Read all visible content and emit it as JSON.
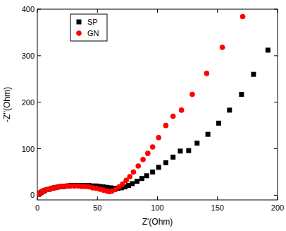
{
  "chart_data": {
    "type": "scatter",
    "x_label": "Z'(Ohm)",
    "y_label": "-Z''(Ohm)",
    "xlim": [
      0,
      200
    ],
    "ylim": [
      -10,
      400
    ],
    "xticks": [
      0,
      50,
      100,
      150,
      200
    ],
    "yticks": [
      0,
      100,
      200,
      300,
      400
    ],
    "grid": false,
    "legend": "upper left",
    "series": [
      {
        "name": "SP",
        "color": "#000000",
        "marker": "square",
        "x": [
          1,
          2,
          3,
          4,
          5,
          6,
          8,
          10,
          12,
          14,
          16,
          18,
          20,
          22,
          25,
          28,
          31,
          34,
          37,
          40,
          43,
          46,
          49,
          52,
          55,
          58,
          61,
          64,
          67,
          70,
          73,
          76,
          79,
          83,
          87,
          91,
          96,
          101,
          107,
          113,
          119,
          126,
          133,
          142,
          151,
          160,
          170,
          180,
          192
        ],
        "values": [
          2,
          4,
          6,
          8,
          9,
          10,
          12,
          13,
          15,
          16,
          17,
          18,
          19,
          19,
          20,
          21,
          21,
          21,
          21,
          21,
          21,
          20,
          20,
          19,
          18,
          17,
          16,
          15,
          15,
          16,
          18,
          21,
          25,
          30,
          36,
          42,
          50,
          60,
          70,
          82,
          95,
          96,
          112,
          131,
          155,
          183,
          217,
          260,
          312
        ]
      },
      {
        "name": "GN",
        "color": "#ff0000",
        "marker": "circle",
        "x": [
          1,
          2,
          3,
          4,
          5,
          6,
          8,
          10,
          12,
          14,
          16,
          18,
          20,
          22,
          25,
          28,
          31,
          34,
          37,
          40,
          43,
          46,
          49,
          52,
          55,
          58,
          60,
          62,
          65,
          68,
          71,
          74,
          77,
          80,
          84,
          88,
          92,
          96,
          101,
          107,
          113,
          120,
          129,
          141,
          154,
          171
        ],
        "values": [
          2,
          4,
          6,
          8,
          9,
          10,
          12,
          13,
          15,
          16,
          17,
          18,
          19,
          19,
          20,
          20,
          20,
          20,
          19,
          19,
          18,
          16,
          15,
          13,
          11,
          9,
          8,
          9,
          12,
          18,
          24,
          32,
          40,
          50,
          63,
          77,
          90,
          104,
          124,
          150,
          170,
          183,
          217,
          262,
          318,
          384
        ]
      }
    ]
  }
}
